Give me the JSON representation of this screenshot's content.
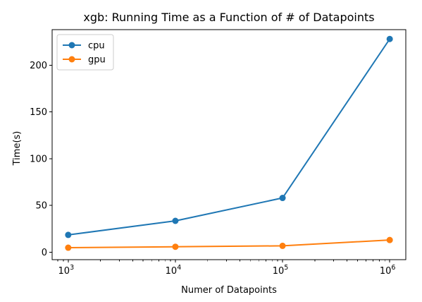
{
  "chart_data": {
    "type": "line",
    "title": "xgb: Running Time as a Function of # of Datapoints",
    "xlabel": "Numer of Datapoints",
    "ylabel": "Time(s)",
    "x_scale": "log",
    "x": [
      1000,
      10000,
      100000,
      1000000
    ],
    "x_tick_labels": [
      {
        "base": "10",
        "exp": "3"
      },
      {
        "base": "10",
        "exp": "4"
      },
      {
        "base": "10",
        "exp": "5"
      },
      {
        "base": "10",
        "exp": "6"
      }
    ],
    "ylim": [
      -8,
      238
    ],
    "y_ticks": [
      0,
      50,
      100,
      150,
      200
    ],
    "y_tick_labels": [
      "0",
      "50",
      "100",
      "150",
      "200"
    ],
    "grid": false,
    "legend_position": "top-left",
    "series": [
      {
        "name": "cpu",
        "color": "#1f77b4",
        "values": [
          18.5,
          33.5,
          58,
          228
        ]
      },
      {
        "name": "gpu",
        "color": "#ff7f0e",
        "values": [
          4.8,
          5.8,
          6.8,
          13
        ]
      }
    ]
  }
}
